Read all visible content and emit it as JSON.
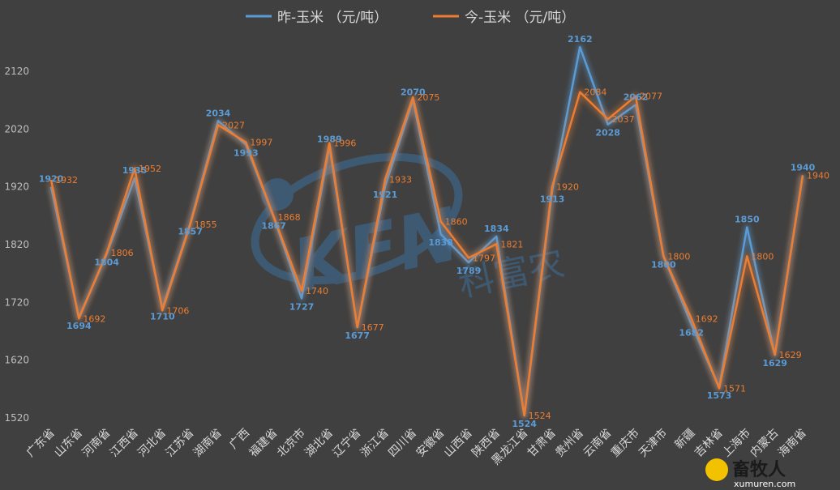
{
  "chart_data": {
    "type": "line",
    "title": "",
    "xlabel": "",
    "ylabel": "",
    "ylim": [
      1520,
      2200
    ],
    "yticks": [
      1520,
      1620,
      1720,
      1820,
      1920,
      2020,
      2120
    ],
    "grid": false,
    "legend_position": "top",
    "categories": [
      "广东省",
      "山东省",
      "河南省",
      "江西省",
      "河北省",
      "江苏省",
      "湖南省",
      "广西",
      "福建省",
      "北京市",
      "湖北省",
      "辽宁省",
      "浙江省",
      "四川省",
      "安徽省",
      "山西省",
      "陕西省",
      "黑龙江省",
      "甘肃省",
      "贵州省",
      "云南省",
      "重庆市",
      "天津市",
      "新疆",
      "吉林省",
      "上海市",
      "内蒙古",
      "海南省"
    ],
    "series": [
      {
        "name": "昨-玉米    （元/吨）",
        "color": "#5b9bd5",
        "values": [
          1920,
          1694,
          1804,
          1935,
          1710,
          1857,
          2034,
          1993,
          1867,
          1727,
          1989,
          1677,
          1921,
          2070,
          1838,
          1789,
          1834,
          1524,
          1913,
          2162,
          2028,
          2062,
          1800,
          1682,
          1573,
          1850,
          1629,
          1940
        ]
      },
      {
        "name": "今-玉米    （元/吨）",
        "color": "#ed7d31",
        "values": [
          1932,
          1692,
          1806,
          1952,
          1706,
          1855,
          2027,
          1997,
          1868,
          1740,
          1996,
          1677,
          1933,
          2075,
          1860,
          1797,
          1821,
          1524,
          1920,
          2084,
          2037,
          2077,
          1800,
          1692,
          1571,
          1800,
          1629,
          1940
        ]
      }
    ]
  },
  "watermark": {
    "main": "KFN",
    "sub": "科富农"
  },
  "logo": {
    "name": "畜牧人",
    "url": "xumuren.com"
  }
}
